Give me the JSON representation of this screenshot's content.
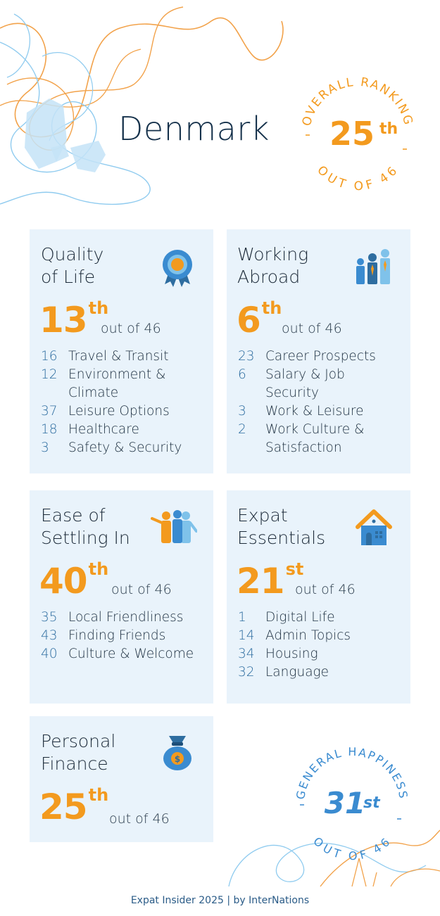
{
  "country": "Denmark",
  "overall": {
    "label_top": "OVERALL RANKING",
    "label_bottom": "OUT OF 46",
    "rank": "25",
    "suffix": "th"
  },
  "happiness": {
    "label_top": "GENERAL HAPPINESS",
    "label_bottom": "OUT OF 46",
    "rank": "31",
    "suffix": "st"
  },
  "colors": {
    "orange": "#f39a1e",
    "blue": "#2e6da0",
    "card_bg": "#e9f3fb",
    "light_blue": "#7fc2ea"
  },
  "cards": [
    {
      "title1": "Quality",
      "title2": "of Life",
      "rank": "13",
      "suffix": "th",
      "out_of": "out of 46",
      "icon": "award-ribbon-icon",
      "items": [
        {
          "n": "16",
          "l1": "Travel & Transit",
          "l2": ""
        },
        {
          "n": "12",
          "l1": "Environment &",
          "l2": "Climate"
        },
        {
          "n": "37",
          "l1": "Leisure Options",
          "l2": ""
        },
        {
          "n": "18",
          "l1": "Healthcare",
          "l2": ""
        },
        {
          "n": "3",
          "l1": "Safety & Security",
          "l2": ""
        }
      ]
    },
    {
      "title1": "Working",
      "title2": "Abroad",
      "rank": "6",
      "suffix": "th",
      "out_of": "out of 46",
      "icon": "business-people-icon",
      "items": [
        {
          "n": "23",
          "l1": "Career Prospects",
          "l2": ""
        },
        {
          "n": "6",
          "l1": "Salary & Job",
          "l2": "Security"
        },
        {
          "n": "3",
          "l1": "Work & Leisure",
          "l2": ""
        },
        {
          "n": "2",
          "l1": "Work Culture &",
          "l2": "Satisfaction"
        }
      ]
    },
    {
      "title1": "Ease of",
      "title2": "Settling In",
      "rank": "40",
      "suffix": "th",
      "out_of": "out of 46",
      "icon": "waving-people-icon",
      "items": [
        {
          "n": "35",
          "l1": "Local Friendliness",
          "l2": ""
        },
        {
          "n": "43",
          "l1": "Finding Friends",
          "l2": ""
        },
        {
          "n": "40",
          "l1": "Culture & Welcome",
          "l2": ""
        }
      ]
    },
    {
      "title1": "Expat",
      "title2": "Essentials",
      "rank": "21",
      "suffix": "st",
      "out_of": "out of 46",
      "icon": "house-icon",
      "items": [
        {
          "n": "1",
          "l1": "Digital Life",
          "l2": ""
        },
        {
          "n": "14",
          "l1": "Admin Topics",
          "l2": ""
        },
        {
          "n": "34",
          "l1": "Housing",
          "l2": ""
        },
        {
          "n": "32",
          "l1": "Language",
          "l2": ""
        }
      ]
    },
    {
      "title1": "Personal",
      "title2": "Finance",
      "rank": "25",
      "suffix": "th",
      "out_of": "out of 46",
      "icon": "money-bag-icon",
      "items": []
    }
  ],
  "footer": "Expat Insider 2025  |  by InterNations"
}
